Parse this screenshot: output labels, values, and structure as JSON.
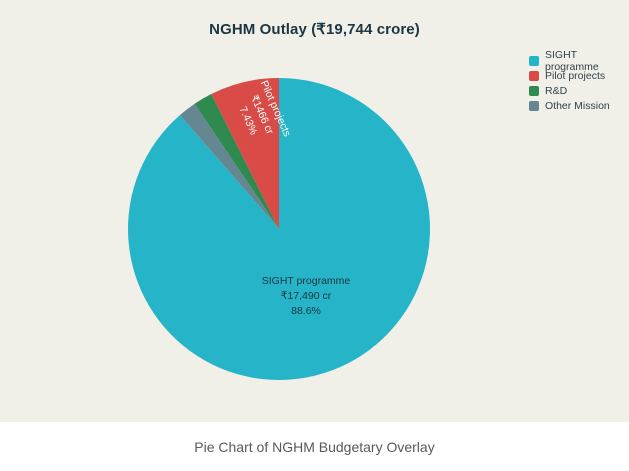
{
  "chart_data": {
    "type": "pie",
    "title": "NGHM Outlay (₹19,744 crore)",
    "total_value_crore": 19744,
    "unit": "₹ crore",
    "legend_position": "right",
    "start_angle": "top",
    "clockwise_order": [
      "SIGHT programme",
      "Other Mission",
      "R&D",
      "Pilot projects"
    ],
    "background_color": "#f1f0e8",
    "slices": [
      {
        "name": "SIGHT programme",
        "value": 17490,
        "value_label": "₹17,490 cr",
        "percent": 88.6,
        "percent_label": "88.6%",
        "color": "#26b5c8"
      },
      {
        "name": "Pilot projects",
        "value": 1466,
        "value_label": "₹1466 cr",
        "percent": 7.43,
        "percent_label": "7.43%",
        "color": "#d84b47"
      },
      {
        "name": "R&D",
        "value": 400,
        "percent": 2.03,
        "color": "#2f8a50"
      },
      {
        "name": "Other Mission",
        "value": 388,
        "percent": 1.97,
        "color": "#648791"
      }
    ]
  },
  "caption": "Pie Chart of NGHM Budgetary Overlay"
}
